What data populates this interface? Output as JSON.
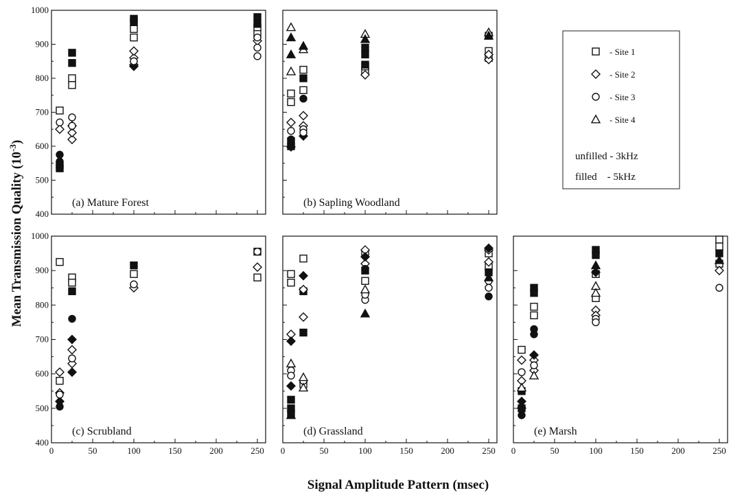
{
  "figure": {
    "ylabel": "Mean Transmission Quality (10",
    "ylabel_sup": "-3",
    "ylabel_close": ")",
    "xlabel": "Signal Amplitude Pattern (msec)"
  },
  "legend": {
    "entries": [
      {
        "label": "- Site 1",
        "marker": "square"
      },
      {
        "label": "- Site 2",
        "marker": "diamond"
      },
      {
        "label": "- Site 3",
        "marker": "circle"
      },
      {
        "label": "- Site 4",
        "marker": "triangle"
      }
    ],
    "fill_note_1": "unfilled - 3kHz",
    "fill_note_2": "filled    - 5kHz"
  },
  "chart_data": [
    {
      "type": "scatter",
      "title": "(a) Mature Forest",
      "xlim": [
        0,
        260
      ],
      "ylim": [
        400,
        1000
      ],
      "xticks": [
        0,
        50,
        100,
        150,
        200,
        250
      ],
      "yticks": [
        400,
        500,
        600,
        700,
        800,
        900,
        1000
      ],
      "grid": false,
      "series": [
        {
          "name": "Site 1",
          "marker": "square",
          "filled": false,
          "points": [
            [
              10,
              705
            ],
            [
              25,
              800
            ],
            [
              25,
              780
            ],
            [
              100,
              920
            ],
            [
              100,
              945
            ],
            [
              250,
              950
            ],
            [
              250,
              930
            ]
          ]
        },
        {
          "name": "Site 1",
          "marker": "square",
          "filled": true,
          "points": [
            [
              10,
              545
            ],
            [
              10,
              535
            ],
            [
              25,
              875
            ],
            [
              25,
              845
            ],
            [
              100,
              975
            ],
            [
              100,
              965
            ],
            [
              250,
              980
            ],
            [
              250,
              960
            ]
          ]
        },
        {
          "name": "Site 2",
          "marker": "diamond",
          "filled": false,
          "points": [
            [
              10,
              650
            ],
            [
              25,
              620
            ],
            [
              25,
              640
            ],
            [
              100,
              840
            ],
            [
              100,
              860
            ],
            [
              100,
              880
            ],
            [
              250,
              910
            ]
          ]
        },
        {
          "name": "Site 2",
          "marker": "diamond",
          "filled": true,
          "points": [
            [
              25,
              660
            ],
            [
              100,
              835
            ]
          ]
        },
        {
          "name": "Site 3",
          "marker": "circle",
          "filled": false,
          "points": [
            [
              10,
              670
            ],
            [
              25,
              685
            ],
            [
              25,
              660
            ],
            [
              100,
              850
            ],
            [
              250,
              865
            ],
            [
              250,
              890
            ],
            [
              250,
              920
            ]
          ]
        },
        {
          "name": "Site 3",
          "marker": "circle",
          "filled": true,
          "points": [
            [
              10,
              575
            ],
            [
              10,
              555
            ]
          ]
        }
      ]
    },
    {
      "type": "scatter",
      "title": "(b) Sapling Woodland",
      "xlim": [
        0,
        260
      ],
      "ylim": [
        400,
        1000
      ],
      "xticks": [
        0,
        50,
        100,
        150,
        200,
        250
      ],
      "yticks": [
        400,
        500,
        600,
        700,
        800,
        900,
        1000
      ],
      "grid": false,
      "series": [
        {
          "name": "Site 1",
          "marker": "square",
          "filled": false,
          "points": [
            [
              10,
              755
            ],
            [
              10,
              730
            ],
            [
              25,
              825
            ],
            [
              25,
              765
            ],
            [
              100,
              820
            ],
            [
              100,
              835
            ],
            [
              250,
              925
            ],
            [
              250,
              880
            ],
            [
              250,
              860
            ]
          ]
        },
        {
          "name": "Site 1",
          "marker": "square",
          "filled": true,
          "points": [
            [
              10,
              615
            ],
            [
              10,
              600
            ],
            [
              25,
              800
            ],
            [
              100,
              870
            ],
            [
              100,
              840
            ],
            [
              100,
              890
            ]
          ]
        },
        {
          "name": "Site 2",
          "marker": "diamond",
          "filled": false,
          "points": [
            [
              10,
              670
            ],
            [
              25,
              690
            ],
            [
              25,
              660
            ],
            [
              100,
              810
            ],
            [
              250,
              855
            ],
            [
              250,
              870
            ]
          ]
        },
        {
          "name": "Site 2",
          "marker": "diamond",
          "filled": true,
          "points": [
            [
              10,
              598
            ],
            [
              25,
              630
            ]
          ]
        },
        {
          "name": "Site 3",
          "marker": "circle",
          "filled": false,
          "points": [
            [
              10,
              645
            ],
            [
              25,
              650
            ],
            [
              25,
              640
            ]
          ]
        },
        {
          "name": "Site 3",
          "marker": "circle",
          "filled": true,
          "points": [
            [
              10,
              620
            ],
            [
              25,
              740
            ]
          ]
        },
        {
          "name": "Site 4",
          "marker": "triangle",
          "filled": false,
          "points": [
            [
              10,
              950
            ],
            [
              10,
              820
            ],
            [
              25,
              885
            ],
            [
              100,
              930
            ],
            [
              250,
              935
            ]
          ]
        },
        {
          "name": "Site 4",
          "marker": "triangle",
          "filled": true,
          "points": [
            [
              10,
              920
            ],
            [
              10,
              870
            ],
            [
              25,
              895
            ],
            [
              100,
              915
            ],
            [
              250,
              925
            ]
          ]
        }
      ]
    },
    {
      "type": "scatter",
      "title": "(c) Scrubland",
      "xlim": [
        0,
        260
      ],
      "ylim": [
        400,
        1000
      ],
      "xticks": [
        0,
        50,
        100,
        150,
        200,
        250
      ],
      "yticks": [
        400,
        500,
        600,
        700,
        800,
        900,
        1000
      ],
      "grid": false,
      "series": [
        {
          "name": "Site 1",
          "marker": "square",
          "filled": false,
          "points": [
            [
              10,
              925
            ],
            [
              10,
              580
            ],
            [
              25,
              880
            ],
            [
              25,
              865
            ],
            [
              100,
              890
            ],
            [
              250,
              955
            ],
            [
              250,
              880
            ]
          ]
        },
        {
          "name": "Site 1",
          "marker": "square",
          "filled": true,
          "points": [
            [
              25,
              840
            ],
            [
              100,
              915
            ]
          ]
        },
        {
          "name": "Site 2",
          "marker": "diamond",
          "filled": false,
          "points": [
            [
              10,
              605
            ],
            [
              10,
              545
            ],
            [
              25,
              670
            ],
            [
              25,
              630
            ],
            [
              100,
              850
            ],
            [
              250,
              910
            ]
          ]
        },
        {
          "name": "Site 2",
          "marker": "diamond",
          "filled": true,
          "points": [
            [
              10,
              520
            ],
            [
              25,
              700
            ],
            [
              25,
              605
            ]
          ]
        },
        {
          "name": "Site 3",
          "marker": "circle",
          "filled": false,
          "points": [
            [
              10,
              540
            ],
            [
              25,
              645
            ],
            [
              100,
              860
            ],
            [
              250,
              955
            ]
          ]
        },
        {
          "name": "Site 3",
          "marker": "circle",
          "filled": true,
          "points": [
            [
              10,
              505
            ],
            [
              25,
              760
            ]
          ]
        }
      ]
    },
    {
      "type": "scatter",
      "title": "(d) Grassland",
      "xlim": [
        0,
        260
      ],
      "ylim": [
        400,
        1000
      ],
      "xticks": [
        0,
        50,
        100,
        150,
        200,
        250
      ],
      "yticks": [
        400,
        500,
        600,
        700,
        800,
        900,
        1000
      ],
      "grid": false,
      "series": [
        {
          "name": "Site 1",
          "marker": "square",
          "filled": false,
          "points": [
            [
              10,
              890
            ],
            [
              10,
              865
            ],
            [
              25,
              935
            ],
            [
              25,
              570
            ],
            [
              100,
              950
            ],
            [
              100,
              870
            ],
            [
              250,
              950
            ],
            [
              250,
              910
            ]
          ]
        },
        {
          "name": "Site 1",
          "marker": "square",
          "filled": true,
          "points": [
            [
              10,
              525
            ],
            [
              10,
              500
            ],
            [
              10,
              485
            ],
            [
              25,
              840
            ],
            [
              25,
              720
            ],
            [
              100,
              900
            ],
            [
              250,
              895
            ]
          ]
        },
        {
          "name": "Site 2",
          "marker": "diamond",
          "filled": false,
          "points": [
            [
              10,
              715
            ],
            [
              25,
              765
            ],
            [
              25,
              845
            ],
            [
              100,
              960
            ],
            [
              100,
              920
            ],
            [
              250,
              960
            ],
            [
              250,
              925
            ]
          ]
        },
        {
          "name": "Site 2",
          "marker": "diamond",
          "filled": true,
          "points": [
            [
              10,
              695
            ],
            [
              10,
              565
            ],
            [
              25,
              885
            ],
            [
              100,
              940
            ],
            [
              250,
              965
            ]
          ]
        },
        {
          "name": "Site 3",
          "marker": "circle",
          "filled": false,
          "points": [
            [
              10,
              610
            ],
            [
              10,
              595
            ],
            [
              25,
              580
            ],
            [
              100,
              815
            ],
            [
              100,
              830
            ],
            [
              250,
              870
            ],
            [
              250,
              850
            ]
          ]
        },
        {
          "name": "Site 3",
          "marker": "circle",
          "filled": true,
          "points": [
            [
              100,
              905
            ],
            [
              250,
              825
            ]
          ]
        },
        {
          "name": "Site 4",
          "marker": "triangle",
          "filled": false,
          "points": [
            [
              10,
              630
            ],
            [
              25,
              590
            ],
            [
              25,
              560
            ],
            [
              100,
              845
            ]
          ]
        },
        {
          "name": "Site 4",
          "marker": "triangle",
          "filled": true,
          "points": [
            [
              10,
              480
            ],
            [
              100,
              775
            ],
            [
              250,
              880
            ]
          ]
        }
      ]
    },
    {
      "type": "scatter",
      "title": "(e) Marsh",
      "xlim": [
        0,
        260
      ],
      "ylim": [
        400,
        1000
      ],
      "xticks": [
        0,
        50,
        100,
        150,
        200,
        250
      ],
      "yticks": [
        400,
        500,
        600,
        700,
        800,
        900,
        1000
      ],
      "grid": false,
      "series": [
        {
          "name": "Site 1",
          "marker": "square",
          "filled": false,
          "points": [
            [
              10,
              670
            ],
            [
              25,
              795
            ],
            [
              25,
              770
            ],
            [
              100,
              820
            ],
            [
              100,
              890
            ],
            [
              250,
              990
            ],
            [
              250,
              970
            ],
            [
              250,
              920
            ]
          ]
        },
        {
          "name": "Site 1",
          "marker": "square",
          "filled": true,
          "points": [
            [
              10,
              550
            ],
            [
              10,
              500
            ],
            [
              25,
              850
            ],
            [
              25,
              835
            ],
            [
              100,
              960
            ],
            [
              100,
              945
            ],
            [
              250,
              950
            ]
          ]
        },
        {
          "name": "Site 2",
          "marker": "diamond",
          "filled": false,
          "points": [
            [
              10,
              640
            ],
            [
              10,
              580
            ],
            [
              25,
              640
            ],
            [
              25,
              610
            ],
            [
              100,
              785
            ],
            [
              100,
              770
            ],
            [
              250,
              900
            ]
          ]
        },
        {
          "name": "Site 2",
          "marker": "diamond",
          "filled": true,
          "points": [
            [
              10,
              520
            ],
            [
              25,
              655
            ],
            [
              100,
              895
            ]
          ]
        },
        {
          "name": "Site 3",
          "marker": "circle",
          "filled": false,
          "points": [
            [
              10,
              605
            ],
            [
              25,
              625
            ],
            [
              100,
              760
            ],
            [
              100,
              750
            ],
            [
              250,
              850
            ]
          ]
        },
        {
          "name": "Site 3",
          "marker": "circle",
          "filled": true,
          "points": [
            [
              10,
              480
            ],
            [
              25,
              730
            ],
            [
              25,
              715
            ]
          ]
        },
        {
          "name": "Site 4",
          "marker": "triangle",
          "filled": false,
          "points": [
            [
              10,
              560
            ],
            [
              25,
              595
            ],
            [
              100,
              855
            ],
            [
              100,
              835
            ]
          ]
        },
        {
          "name": "Site 4",
          "marker": "triangle",
          "filled": true,
          "points": [
            [
              10,
              510
            ],
            [
              100,
              915
            ],
            [
              250,
              930
            ]
          ]
        }
      ]
    }
  ]
}
